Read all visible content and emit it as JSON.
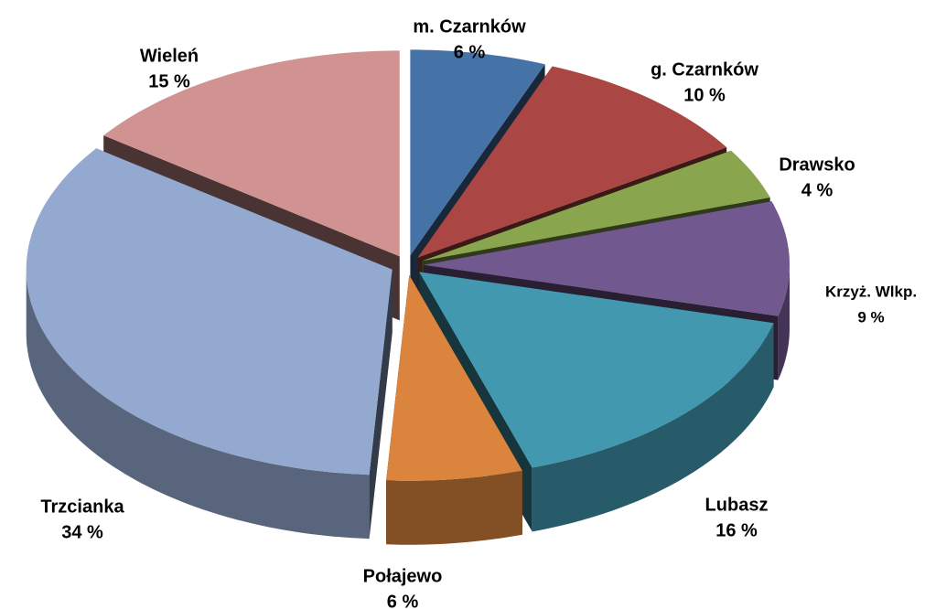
{
  "chart_data": {
    "type": "pie3d",
    "categories": [
      "m. Czarnków",
      "g. Czarnków",
      "Drawsko",
      "Krzyż. Wlkp.",
      "Lubasz",
      "Połajewo",
      "Trzcianka",
      "Wieleń"
    ],
    "values": [
      6,
      10,
      4,
      9,
      16,
      6,
      34,
      15
    ],
    "value_labels": [
      "6 %",
      "10 %",
      "4 %",
      "9 %",
      "16 %",
      "6 %",
      "34 %",
      "15 %"
    ],
    "colors": [
      "#4572a7",
      "#aa4643",
      "#89a54e",
      "#71588f",
      "#4198af",
      "#db843d",
      "#93a9cf",
      "#d19392"
    ]
  }
}
